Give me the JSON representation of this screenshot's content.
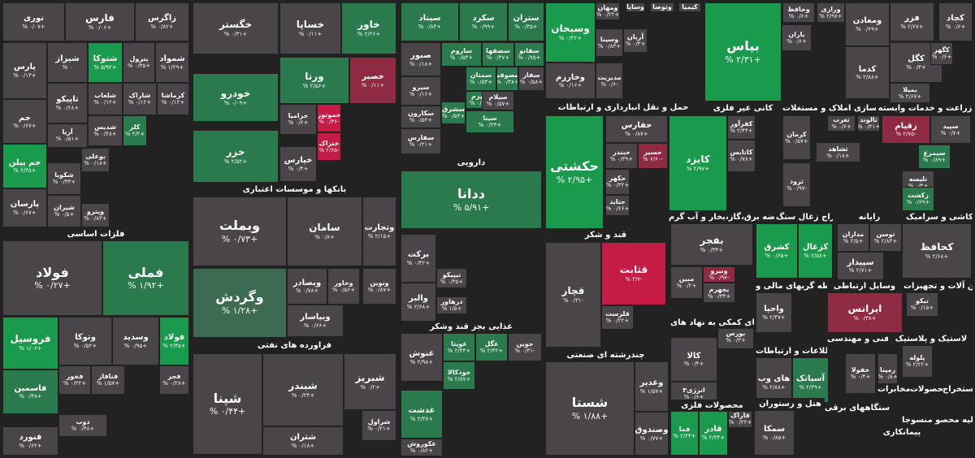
{
  "colors": {
    "gray": "#4a4549",
    "green": "#1a9a4c",
    "green_light": "#3ea862",
    "green_dark": "#2a7a4e",
    "green_muted": "#3c6b52",
    "red": "#c51c46",
    "red_dark": "#8e2a41",
    "red_muted": "#6b3544"
  },
  "sectors": {
    "basic_metals": "فلزات اساسی",
    "banks": "بانکها و موسسات اعتباری",
    "pharma": "دارویی",
    "transport": "حمل و نقل انبارداری و ارتباطات",
    "nonmetal_mines": "کانی غیر فلزی",
    "real_estate": "انبوه سازی املاک و مستغلات",
    "agriculture": "زراعت و خدمات وابسته",
    "refinery": "فراورده های نفتی",
    "sugar": "قند و شکر",
    "food": "غذایی بجز قند وشکر",
    "multi_industry": "چندرشته ای صنعتی",
    "utilities": "عرضه برق،گاز،بخار و آب گرم",
    "coal": "استخراج زغال سنگ",
    "computer": "رایانه",
    "tiles": "کاشی و سرامیک",
    "financial_intermediaries": "واسطه گریهای مالی و",
    "vehicles": "وسایل ارتباطی",
    "machinery": "ماشین آلات و تجهیزات",
    "financial_aux": "فعالیتهای کمکی به نهاد های",
    "it": "اطلاعات و ارتباطات",
    "engineering": "فنی و مهندسی",
    "plastic": "لاستیک و پلاستیک",
    "metal_products": "محصولات فلزی",
    "hotel": "هتل و رستوران",
    "electric": "دستگاههای برقی",
    "telecom": "مخابرات",
    "mineral_products": "محصولات",
    "extraction": "استخراج",
    "other_mining": "فعالیه محصو منسوجا",
    "contracting": "پیمانکاری",
    "products": "محصولا",
    "extra1": "سایر"
  },
  "tiles": {
    "fameli": {
      "name": "فملی",
      "pct": "% ۱/۹۲+"
    },
    "foolad": {
      "name": "فولاد",
      "pct": "% ۰/۲۷+"
    },
    "noori": {
      "name": "نوری",
      "pct": "% ۰/۰۷+"
    },
    "fars": {
      "name": "فارس",
      "pct": "% ۰/۰۶+"
    },
    "zagros": {
      "name": "زاگرس",
      "pct": "% ۰/۸۲+"
    },
    "shamvad": {
      "name": "شمواد",
      "pct": "% ۱/۲۹+"
    },
    "petrol": {
      "name": "پترول",
      "pct": "% ۰/۳۵+"
    },
    "shatoka": {
      "name": "شتوکا",
      "pct": "% ۵/۹۲+"
    },
    "shiraz": {
      "name": "شیراز",
      "pct": "% ۰"
    },
    "pars": {
      "name": "پارس",
      "pct": "% ۰/۱۳+"
    },
    "kermasha": {
      "name": "کرماشا",
      "pct": "% ۰/۱۲+"
    },
    "shasab": {
      "name": "شاراک",
      "pct": "% ۰/۱۲+"
    },
    "shebahab": {
      "name": "شلعاب",
      "pct": "% ۰/۱۲+"
    },
    "tapiko": {
      "name": "تاپیکو",
      "pct": "% ۰/۲۸+"
    },
    "jam": {
      "name": "جم",
      "pct": "% ۰/۶۷+"
    },
    "arya": {
      "name": "آریا",
      "pct": "% ۰/۵۱+"
    },
    "shedis": {
      "name": "شدیس",
      "pct": "% ۰/۲۸+"
    },
    "kolor": {
      "name": "کلر",
      "pct": "% ۲/۲+"
    },
    "jampilan": {
      "name": "جم پیلن",
      "pct": "% ۲/۴۵+"
    },
    "shekovia": {
      "name": "شکویا",
      "pct": "% ۰/۳۳+"
    },
    "booali": {
      "name": "بوعلی",
      "pct": "% ۰/۱۸+"
    },
    "shiran": {
      "name": "شیران",
      "pct": "% ۰/۵+"
    },
    "parsan": {
      "name": "پارسان",
      "pct": "% ۰/۶۷+"
    },
    "pitro": {
      "name": "ویترو",
      "pct": "% ۰/۸۳+"
    },
    "khegostar": {
      "name": "خگستر",
      "pct": "% ۰/۳۱+"
    },
    "khodro": {
      "name": "خودرو",
      "pct": "% ۰/۰۹+"
    },
    "khazar": {
      "name": "خزر",
      "pct": "% ۲/۵۲+"
    },
    "khasapa": {
      "name": "خساپا",
      "pct": "% ۰/۱۱+"
    },
    "khavar": {
      "name": "خاور",
      "pct": "% ۲/۲۶+"
    },
    "verna": {
      "name": "ورنا",
      "pct": "% ۲/۵۶+"
    },
    "khasir": {
      "name": "خصیر",
      "pct": "% ۰/۱۱+"
    },
    "khazamia": {
      "name": "خزامیا",
      "pct": "% ۰/۶+"
    },
    "khamotor": {
      "name": "خموتور",
      "pct": "% ۰/۳۶-"
    },
    "khtrak": {
      "name": "ختراک",
      "pct": "% ۲/۶۵-"
    },
    "khapars": {
      "name": "خپارس",
      "pct": "% ۰/۳+"
    },
    "vebmelat": {
      "name": "وبملت",
      "pct": "% ۰/۷۳+"
    },
    "saman": {
      "name": "سامان",
      "pct": "% ۰/۸+"
    },
    "vetejarat": {
      "name": "وتجارت",
      "pct": "% ۲/۱۵+"
    },
    "vekharazm": {
      "name": "وگردش",
      "pct": "% ۱/۲۸+"
    },
    "vebsader": {
      "name": "وبصادر",
      "pct": "% ۰/۷۸+"
    },
    "vekhavar": {
      "name": "وخاور",
      "pct": "% ۰/۵۶+"
    },
    "vepasar": {
      "name": "ویپاسار",
      "pct": "% ۰/۶۶+"
    },
    "vapars": {
      "name": "وپارس",
      "pct": "% ۰/۲۵+"
    },
    "venovin": {
      "name": "ونوین",
      "pct": "% ۰/۸۷+"
    },
    "shepna": {
      "name": "شپنا",
      "pct": "% ۰/۴۴+"
    },
    "shebandar": {
      "name": "شبندر",
      "pct": "% ۰/۲۳+"
    },
    "shebriz": {
      "name": "شبریز",
      "pct": "% ۰/۲+"
    },
    "shetran": {
      "name": "شتران",
      "pct": "% ۰/۱۸+"
    },
    "shraval": {
      "name": "شراول",
      "pct": "% ۰/۲۱+"
    },
    "fooladkhz": {
      "name": "فولاد",
      "pct": "% ۲/۴۵+"
    },
    "vesdid": {
      "name": "وسدید",
      "pct": "% ۰/۹۵+"
    },
    "fersil": {
      "name": "فروسیل",
      "pct": "% ۱/۰۶+"
    },
    "vetoka": {
      "name": "وتوکا",
      "pct": "% ۰/۵۲+"
    },
    "fakhaz": {
      "name": "فخوز",
      "pct": "% ۰/۲۲+"
    },
    "fanafaz": {
      "name": "فنافاز",
      "pct": "% ۱/۵۷+"
    },
    "fajr": {
      "name": "فجر",
      "pct": "% ۰/۲۸+"
    },
    "fasmin": {
      "name": "فاسمین",
      "pct": "% ۰/۳۸+"
    },
    "fazar": {
      "name": "فاذر",
      "pct": "% ۰/۲۲+"
    },
    "zob": {
      "name": "ذوب",
      "pct": "% ۰/۳۸+"
    },
    "fanoord": {
      "name": "فنورد",
      "pct": "% ۰/۶۲+"
    },
    "sinabad": {
      "name": "سیناد",
      "pct": "% ۰/۸۳+"
    },
    "sekord": {
      "name": "سکرد",
      "pct": "% ۰/۹۹+"
    },
    "setran": {
      "name": "ستران",
      "pct": "% ۰/۳۵+"
    },
    "sabour": {
      "name": "صبور",
      "pct": "% ۰/۱۸+"
    },
    "sarom": {
      "name": "ساروم",
      "pct": "% ۰/۵۳+"
    },
    "sesfaha": {
      "name": "سصفها",
      "pct": "% ۰/۴۷+"
    },
    "sefano": {
      "name": "سفانو",
      "pct": "% ۰/۷۵+"
    },
    "sizo": {
      "name": "سیزو",
      "pct": "% ۰/۱۶+"
    },
    "semtan": {
      "name": "سمتان",
      "pct": "% ۰/۵۳+"
    },
    "sesofi": {
      "name": "سصوفی",
      "pct": "% ۰/۳۸+"
    },
    "safar": {
      "name": "سفار",
      "pct": "% ۰/۵۸+"
    },
    "sehorm": {
      "name": "سهرم",
      "pct": "% ۰/۹۸+"
    },
    "seilam": {
      "name": "سیلام",
      "pct": "% ۰/۵۷+"
    },
    "sekaroon": {
      "name": "سکارون",
      "pct": "% ۰/۵۳+"
    },
    "sesharq": {
      "name": "سشرق",
      "pct": "% ۰/۵۴+"
    },
    "seita": {
      "name": "سیتا",
      "pct": "% ۰/۲۳+"
    },
    "sefars": {
      "name": "سفارس",
      "pct": "% ۰/۲۱+"
    },
    "seiman": {
      "name": "سیمان",
      "pct": "% ۰/۸۷+"
    },
    "dodana": {
      "name": "ددانا",
      "pct": "% ۵/۹۱+"
    },
    "barkat": {
      "name": "برکت",
      "pct": "% ۰/۴۲+"
    },
    "tipiko": {
      "name": "تیپیکو",
      "pct": "% ۰/۳۵+"
    },
    "daru": {
      "name": "درهاور",
      "pct": "% ۱/۵+"
    },
    "valber": {
      "name": "والبر",
      "pct": "% ۲/۶۸+"
    },
    "ghanosh": {
      "name": "غنوش",
      "pct": "% ۲/۹۸+"
    },
    "ghorita": {
      "name": "غویتا",
      "pct": "% ۲/۴۴+"
    },
    "ghegol": {
      "name": "غگل",
      "pct": "% ۲/۴۲+"
    },
    "joyin": {
      "name": "جوین",
      "pct": "% ۰/۳۱-"
    },
    "khodkala": {
      "name": "خودکالا",
      "pct": "% ۲/۸۷+"
    },
    "ghedasht": {
      "name": "غدشت",
      "pct": "% ۲/۴۷+"
    },
    "ghaz": {
      "name": "غاذر",
      "pct": "% ۰/۶۸+"
    },
    "ghekoorosh": {
      "name": "غکوروش",
      "pct": "% ۰/۸۲+"
    },
    "vemahan": {
      "name": "ومهان",
      "pct": "% ۰/۲۲+"
    },
    "vesobhan": {
      "name": "وسبحان",
      "pct": "% ۰/۲۲+"
    },
    "vesina": {
      "name": "وسینا",
      "pct": "% ۰/۸۳+"
    },
    "vekharazm2": {
      "name": "وخارزم",
      "pct": "% ۰/۱۶+"
    },
    "modiriat": {
      "name": "مدیریت",
      "pct": "% ۰/۶-"
    },
    "heshkati": {
      "name": "حکشتی",
      "pct": "% ۲/۹۵+"
    },
    "hefarsi": {
      "name": "حفارس",
      "pct": "% ۰/۸۷+"
    },
    "heseir": {
      "name": "حسیر",
      "pct": "% ۶/۶۰-"
    },
    "heseir2": {
      "name": "حبندر",
      "pct": "% ۰/۳۹+"
    },
    "hekeshti": {
      "name": "حکهر",
      "pct": "% ۰/۳۲+"
    },
    "hetkar": {
      "name": "حتوکا",
      "pct": "% ۰/۵۲+"
    },
    "hetaid": {
      "name": "حتاید",
      "pct": "% ۰/۶۶+"
    },
    "bepas": {
      "name": "بپاس",
      "pct": "% ۲/۳۱+"
    },
    "baran": {
      "name": "باران",
      "pct": "% ۰/۶+"
    },
    "ghetabat": {
      "name": "قثابت",
      "pct": "% ۴/۷-"
    },
    "qechar": {
      "name": "قچار",
      "pct": "% ۰/۳۱-"
    },
    "qelarst": {
      "name": "قلرست",
      "pct": "% ۰/۲۲+"
    },
    "shasta": {
      "name": "شستا",
      "pct": "% ۱/۸۸+"
    },
    "vaghadir": {
      "name": "وغدیر",
      "pct": "% ۱/۵۷+"
    },
    "vasandogh": {
      "name": "وصندوق",
      "pct": "% ۰/۷۷+"
    },
    "kafra": {
      "name": "کفرآور",
      "pct": "% ۲/۴۴+"
    },
    "katabas": {
      "name": "کاتابس",
      "pct": "% ۰/۷۸+"
    },
    "kayzd": {
      "name": "کایزد",
      "pct": "% ۲/۹۷+"
    },
    "kegaz": {
      "name": "کگاز",
      "pct": "% ۲/۸۹+"
    },
    "bafjr": {
      "name": "بفجر",
      "pct": "% ۰/۳۳+"
    },
    "bemapna": {
      "name": "بمپنا",
      "pct": "% ۰/۳۸+"
    },
    "bejar": {
      "name": "بجهرم",
      "pct": "% ۰/۳۳+"
    },
    "bemin": {
      "name": "مبین",
      "pct": "% ۰/۲+"
    },
    "vakhosar": {
      "name": "ونیرو",
      "pct": "% ۰/۹۷-"
    },
    "kevira": {
      "name": "کلوا",
      "pct": "% ۰/۶۸+"
    },
    "kesharq": {
      "name": "کشرق",
      "pct": "% ۰/۶۵+"
    },
    "kezghal": {
      "name": "کزغال",
      "pct": "% ۲/۵۸+"
    },
    "mandarin": {
      "name": "مداران",
      "pct": "% ۲/۵+"
    },
    "toosan": {
      "name": "توسن",
      "pct": "% ۲/۸۳+"
    },
    "sepidar": {
      "name": "سپیدار",
      "pct": "% ۲/۷۱+"
    },
    "kamhafz": {
      "name": "کحافظ",
      "pct": "% ۲/۶۸+"
    },
    "kermani": {
      "name": "کرمان",
      "pct": "% ۰/۵۷+"
    },
    "rasani": {
      "name": "ثرود",
      "pct": "% ۰/۹۷-"
    },
    "tegharb": {
      "name": "ثغرب",
      "pct": "% ۰/۶+"
    },
    "talond": {
      "name": "ثالوند",
      "pct": "% ۰/۲۱+"
    },
    "zagham": {
      "name": "زقیام",
      "pct": "% ۲/۷۵-"
    },
    "sepid": {
      "name": "سپید",
      "pct": "% ۰/۷+"
    },
    "simorgh": {
      "name": "سیمرغ",
      "pct": "% ۰/۸۹+"
    },
    "telisa": {
      "name": "تلیسه",
      "pct": "% ۰/۴+"
    },
    "zekesht": {
      "name": "زکشت",
      "pct": "% ۰/۶۹+"
    },
    "shatel": {
      "name": "ثشاهد",
      "pct": "% ۰/۱۸+"
    },
    "kedari": {
      "name": "کدارو",
      "pct": "% ۰/۶+"
    },
    "vatoosa": {
      "name": "وتوسا",
      "pct": "% ۰/۶+"
    },
    "vakhahim": {
      "name": "وخابیم",
      "pct": "% ۰/۸+"
    },
    "vasaandog": {
      "name": "وآفری",
      "pct": "% ۰/۷۷+"
    },
    "vakhar": {
      "name": "واحیا",
      "pct": "% ۲/۴۷+"
    },
    "irans": {
      "name": "ایرانس",
      "pct": "% ۰/۳۸+"
    },
    "tikoo": {
      "name": "تیکو",
      "pct": "% ۰/۱۵+"
    },
    "kala": {
      "name": "کالا",
      "pct": "% ۰/۴+"
    },
    "boors": {
      "name": "بورس",
      "pct": "% ۰/۳+"
    },
    "fani": {
      "name": "انرژی۳",
      "pct": "% ۰/۶+"
    },
    "hayweb": {
      "name": "های وب",
      "pct": "% ۲/۸۸+"
    },
    "asiatek": {
      "name": "آسیاتک",
      "pct": "% ۲/۳۹+"
    },
    "kheflolad": {
      "name": "خفولا",
      "pct": "% ۰/۴+"
    },
    "remina": {
      "name": "رمپنا",
      "pct": "% ۰/۸+"
    },
    "pelolleh": {
      "name": "پلوله",
      "pct": "% ۲/۲۲+"
    },
    "fara": {
      "name": "فاراک",
      "pct": "% ۰/۲۲+"
    },
    "qadir": {
      "name": "قادر",
      "pct": "% ۲/۴۴+"
    },
    "fama": {
      "name": "فما",
      "pct": "% ۲/۲۴+"
    },
    "semka": {
      "name": "سمکا",
      "pct": "% ۰/۸۵+"
    },
    "kadmahjar": {
      "name": "کدما",
      "pct": "% ۲/۸۸+"
    },
    "kegol": {
      "name": "کگل",
      "pct": "% ۰/۳+"
    },
    "kehave": {
      "name": "کگهر",
      "pct": "% ۰/۶+"
    },
    "kechad": {
      "name": "کچاد",
      "pct": "% ۰/۶+"
    },
    "kefar": {
      "name": "فزر",
      "pct": "% ۲/۶۷+"
    },
    "vemadan": {
      "name": "ومعادن",
      "pct": "% ۰/۶۹+"
    },
    "bemila": {
      "name": "بمیلا",
      "pct": "% ۲/۶۷+"
    },
    "vatazar": {
      "name": "وتازار",
      "pct": "% ۰/۵۶+"
    },
    "varazi": {
      "name": "ورازی",
      "pct": "% ۲/۹۷+"
    },
    "vahafaz": {
      "name": "وحافظ",
      "pct": "% ۰/۶+"
    },
    "vapas": {
      "name": "وپسا",
      "pct": "% ۰/۲۲+"
    },
    "vesahab": {
      "name": "وساپا",
      "pct": "% ۰/۱۸+"
    },
    "vatopa": {
      "name": "وتوصا",
      "pct": "% ۰/۱۸+"
    },
    "arian": {
      "name": "آریان",
      "pct": "% ۰/۳+"
    },
    "kimia": {
      "name": "کیمیا",
      "pct": "% ۰/۳+"
    },
    "vekhak": {
      "name": "وبهمن",
      "pct": "% ۰/۶+"
    },
    "sab": {
      "name": "صب",
      "pct": "% ۰/۳+"
    },
    "vatoeka": {
      "name": "وتوکا",
      "pct": "% ۰/۵۲+"
    }
  }
}
